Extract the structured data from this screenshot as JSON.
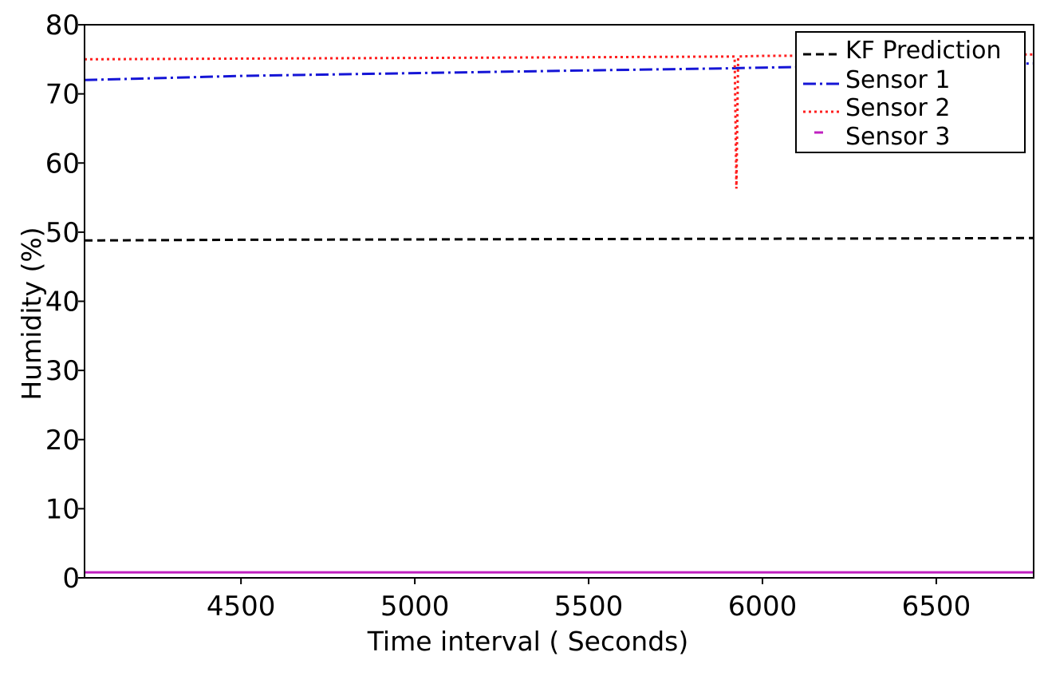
{
  "chart_data": {
    "type": "line",
    "title": "",
    "xlabel": "Time interval ( Seconds)",
    "ylabel": "Humidity (%)",
    "xlim": [
      4050,
      6780
    ],
    "ylim": [
      0,
      80
    ],
    "xticks": [
      4500,
      5000,
      5500,
      6000,
      6500
    ],
    "yticks": [
      0,
      10,
      20,
      30,
      40,
      50,
      60,
      70,
      80
    ],
    "grid": false,
    "legend_position": "top-right",
    "series": [
      {
        "name": "KF Prediction",
        "color": "#000000",
        "style": "dashed",
        "x": [
          4050,
          4500,
          5000,
          5500,
          6000,
          6500,
          6780
        ],
        "y": [
          48.8,
          48.9,
          48.95,
          49.0,
          49.05,
          49.1,
          49.15
        ]
      },
      {
        "name": "Sensor 1",
        "color": "#1515d6",
        "style": "dashdot",
        "x": [
          4050,
          4200,
          4500,
          5000,
          5500,
          5900,
          6000,
          6500,
          6780
        ],
        "y": [
          72.0,
          72.2,
          72.6,
          73.0,
          73.4,
          73.7,
          73.8,
          74.2,
          74.4
        ]
      },
      {
        "name": "Sensor 2",
        "color": "#ff2020",
        "style": "dotted",
        "x": [
          4050,
          4500,
          5000,
          5500,
          5920,
          5925,
          5930,
          6000,
          6500,
          6780
        ],
        "y": [
          75.0,
          75.1,
          75.2,
          75.3,
          75.4,
          56.3,
          75.4,
          75.5,
          75.6,
          75.7
        ]
      },
      {
        "name": "Sensor 3",
        "color": "#c020c0",
        "style": "solid",
        "x": [
          4050,
          6780
        ],
        "y": [
          0.8,
          0.8
        ]
      }
    ]
  }
}
